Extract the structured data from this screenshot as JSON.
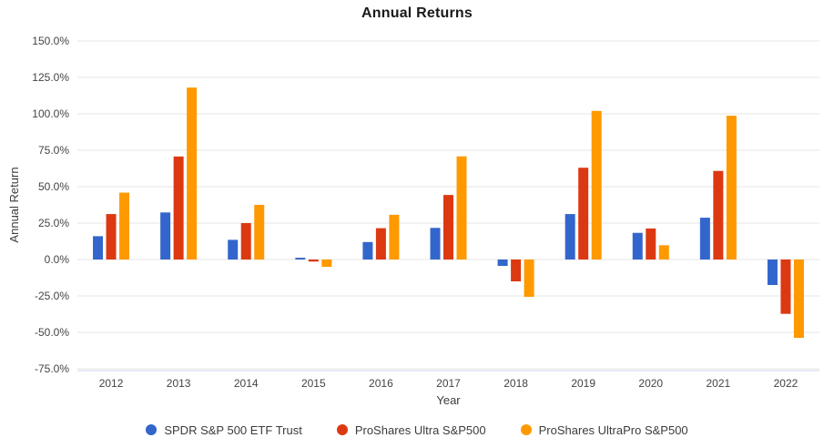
{
  "chart_data": {
    "type": "bar",
    "title": "Annual Returns",
    "xlabel": "Year",
    "ylabel": "Annual Return",
    "categories": [
      "2012",
      "2013",
      "2014",
      "2015",
      "2016",
      "2017",
      "2018",
      "2019",
      "2020",
      "2021",
      "2022"
    ],
    "series": [
      {
        "name": "SPDR S&P 500 ETF Trust",
        "color": "#3366CC",
        "values": [
          16.0,
          32.3,
          13.5,
          1.2,
          12.0,
          21.7,
          -4.4,
          31.2,
          18.3,
          28.7,
          -17.5
        ]
      },
      {
        "name": "ProShares Ultra S&P500",
        "color": "#DC3912",
        "values": [
          31.2,
          70.7,
          25.0,
          -1.4,
          21.5,
          44.3,
          -15.0,
          63.0,
          21.3,
          60.8,
          -37.3
        ]
      },
      {
        "name": "ProShares UltraPro S&P500",
        "color": "#FF9900",
        "values": [
          45.9,
          118.0,
          37.5,
          -5.0,
          30.7,
          70.8,
          -25.6,
          102.0,
          9.8,
          98.7,
          -53.8
        ]
      }
    ],
    "y_ticks": [
      150,
      125,
      100,
      75,
      50,
      25,
      0,
      -25,
      -50,
      -75
    ],
    "y_tick_labels": [
      "150.0%",
      "125.0%",
      "100.0%",
      "75.0%",
      "50.0%",
      "25.0%",
      "0.0%",
      "-25.0%",
      "-50.0%",
      "-75.0%"
    ],
    "ylim": [
      -75,
      150
    ],
    "grid": true,
    "legend_position": "bottom",
    "colors": {
      "background": "#FFFFFF",
      "gridline": "#E6E6E6",
      "axis_line": "#CCD4EC",
      "tick_text": "#444444",
      "axis_title_text": "#3C3C3C",
      "title_text": "#1A1A1A",
      "legend_text": "#3C3C3C"
    }
  }
}
